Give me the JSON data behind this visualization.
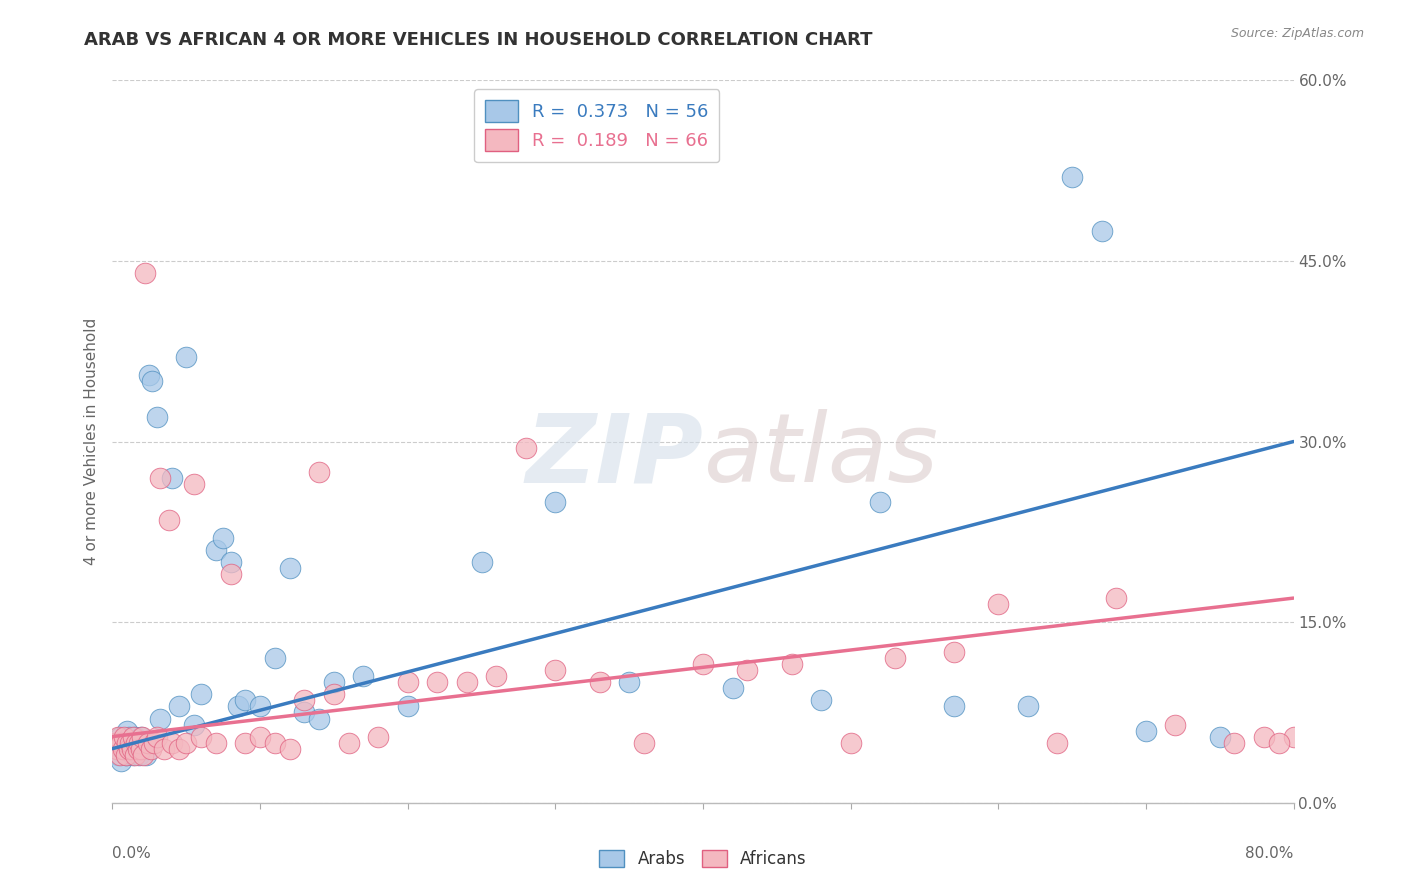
{
  "title": "ARAB VS AFRICAN 4 OR MORE VEHICLES IN HOUSEHOLD CORRELATION CHART",
  "source": "Source: ZipAtlas.com",
  "ylabel": "4 or more Vehicles in Household",
  "watermark_part1": "ZIP",
  "watermark_part2": "atlas",
  "arab_R": 0.373,
  "arab_N": 56,
  "african_R": 0.189,
  "african_N": 66,
  "arab_color": "#a8c8e8",
  "african_color": "#f4b8c0",
  "arab_line_color": "#3a7bbf",
  "african_line_color": "#e87090",
  "arab_edge_color": "#5090c0",
  "african_edge_color": "#e06080",
  "arab_points": [
    [
      0.2,
      4.5
    ],
    [
      0.3,
      5.0
    ],
    [
      0.4,
      4.0
    ],
    [
      0.5,
      5.5
    ],
    [
      0.6,
      3.5
    ],
    [
      0.7,
      4.5
    ],
    [
      0.8,
      5.0
    ],
    [
      0.9,
      4.0
    ],
    [
      1.0,
      6.0
    ],
    [
      1.1,
      5.5
    ],
    [
      1.2,
      4.5
    ],
    [
      1.3,
      5.0
    ],
    [
      1.4,
      4.0
    ],
    [
      1.5,
      5.5
    ],
    [
      1.6,
      4.5
    ],
    [
      1.7,
      5.0
    ],
    [
      1.8,
      4.0
    ],
    [
      1.9,
      5.5
    ],
    [
      2.0,
      5.0
    ],
    [
      2.1,
      4.5
    ],
    [
      2.2,
      5.0
    ],
    [
      2.3,
      4.0
    ],
    [
      2.5,
      35.5
    ],
    [
      2.7,
      35.0
    ],
    [
      3.0,
      32.0
    ],
    [
      3.2,
      7.0
    ],
    [
      4.0,
      27.0
    ],
    [
      4.5,
      8.0
    ],
    [
      5.0,
      37.0
    ],
    [
      5.5,
      6.5
    ],
    [
      6.0,
      9.0
    ],
    [
      7.0,
      21.0
    ],
    [
      7.5,
      22.0
    ],
    [
      8.0,
      20.0
    ],
    [
      8.5,
      8.0
    ],
    [
      9.0,
      8.5
    ],
    [
      10.0,
      8.0
    ],
    [
      11.0,
      12.0
    ],
    [
      12.0,
      19.5
    ],
    [
      13.0,
      7.5
    ],
    [
      14.0,
      7.0
    ],
    [
      15.0,
      10.0
    ],
    [
      17.0,
      10.5
    ],
    [
      20.0,
      8.0
    ],
    [
      25.0,
      20.0
    ],
    [
      30.0,
      25.0
    ],
    [
      35.0,
      10.0
    ],
    [
      42.0,
      9.5
    ],
    [
      48.0,
      8.5
    ],
    [
      52.0,
      25.0
    ],
    [
      57.0,
      8.0
    ],
    [
      62.0,
      8.0
    ],
    [
      65.0,
      52.0
    ],
    [
      67.0,
      47.5
    ],
    [
      70.0,
      6.0
    ],
    [
      75.0,
      5.5
    ]
  ],
  "african_points": [
    [
      0.2,
      5.0
    ],
    [
      0.3,
      4.5
    ],
    [
      0.4,
      5.5
    ],
    [
      0.5,
      4.0
    ],
    [
      0.6,
      5.0
    ],
    [
      0.7,
      4.5
    ],
    [
      0.8,
      5.5
    ],
    [
      0.9,
      4.0
    ],
    [
      1.0,
      5.0
    ],
    [
      1.1,
      4.5
    ],
    [
      1.2,
      5.0
    ],
    [
      1.3,
      4.5
    ],
    [
      1.4,
      5.5
    ],
    [
      1.5,
      4.0
    ],
    [
      1.6,
      5.0
    ],
    [
      1.7,
      4.5
    ],
    [
      1.8,
      5.0
    ],
    [
      1.9,
      4.5
    ],
    [
      2.0,
      5.5
    ],
    [
      2.1,
      4.0
    ],
    [
      2.2,
      44.0
    ],
    [
      2.4,
      5.0
    ],
    [
      2.6,
      4.5
    ],
    [
      2.8,
      5.0
    ],
    [
      3.0,
      5.5
    ],
    [
      3.2,
      27.0
    ],
    [
      3.5,
      4.5
    ],
    [
      3.8,
      23.5
    ],
    [
      4.0,
      5.0
    ],
    [
      4.5,
      4.5
    ],
    [
      5.0,
      5.0
    ],
    [
      5.5,
      26.5
    ],
    [
      6.0,
      5.5
    ],
    [
      7.0,
      5.0
    ],
    [
      8.0,
      19.0
    ],
    [
      9.0,
      5.0
    ],
    [
      10.0,
      5.5
    ],
    [
      11.0,
      5.0
    ],
    [
      12.0,
      4.5
    ],
    [
      13.0,
      8.5
    ],
    [
      14.0,
      27.5
    ],
    [
      15.0,
      9.0
    ],
    [
      16.0,
      5.0
    ],
    [
      18.0,
      5.5
    ],
    [
      20.0,
      10.0
    ],
    [
      22.0,
      10.0
    ],
    [
      24.0,
      10.0
    ],
    [
      26.0,
      10.5
    ],
    [
      28.0,
      29.5
    ],
    [
      30.0,
      11.0
    ],
    [
      33.0,
      10.0
    ],
    [
      36.0,
      5.0
    ],
    [
      40.0,
      11.5
    ],
    [
      43.0,
      11.0
    ],
    [
      46.0,
      11.5
    ],
    [
      50.0,
      5.0
    ],
    [
      53.0,
      12.0
    ],
    [
      57.0,
      12.5
    ],
    [
      60.0,
      16.5
    ],
    [
      64.0,
      5.0
    ],
    [
      68.0,
      17.0
    ],
    [
      72.0,
      6.5
    ],
    [
      76.0,
      5.0
    ],
    [
      78.0,
      5.5
    ],
    [
      80.0,
      5.5
    ],
    [
      79.0,
      5.0
    ]
  ],
  "xlim": [
    0,
    80
  ],
  "ylim": [
    0,
    60
  ],
  "yticks": [
    0,
    15,
    30,
    45,
    60
  ],
  "ytick_labels": [
    "0.0%",
    "15.0%",
    "30.0%",
    "45.0%",
    "60.0%"
  ],
  "arab_line_start_y": 4.5,
  "arab_line_end_y": 30.0,
  "african_line_start_y": 5.5,
  "african_line_end_y": 17.0,
  "background_color": "#ffffff",
  "grid_color": "#cccccc"
}
